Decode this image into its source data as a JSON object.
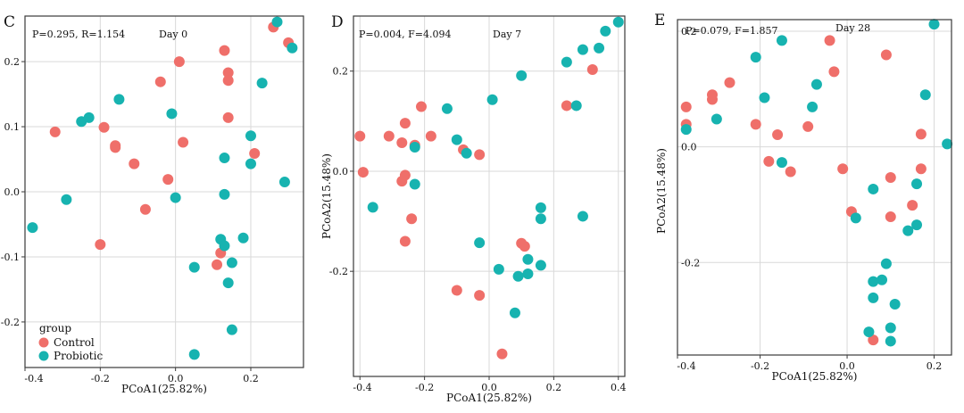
{
  "colors": {
    "control": "#EF6F6A",
    "probiotic": "#17B3B0",
    "grid": "#d9d9d9",
    "frame": "#3a3a3a"
  },
  "legend": {
    "title": "group",
    "items": [
      {
        "label": "Control",
        "color": "#EF6F6A"
      },
      {
        "label": "Probiotic",
        "color": "#17B3B0"
      }
    ]
  },
  "chart_data": [
    {
      "type": "scatter",
      "panel": "C",
      "stat_text": "P=0.295, R=1.154",
      "day_label": "Day 0",
      "xlabel": "PCoA1(25.82%)",
      "ylabel": "",
      "xlim": [
        -0.4,
        0.34
      ],
      "ylim": [
        -0.27,
        0.27
      ],
      "x_ticks": [
        -0.4,
        -0.2,
        0.0,
        0.2
      ],
      "x_tick_labels": [
        "-0.4",
        "-0.2",
        "0.0",
        "0.2"
      ],
      "y_ticks": [
        -0.2,
        -0.1,
        0.0,
        0.1,
        0.2
      ],
      "y_tick_labels": [
        "-0.2",
        "-0.1",
        "0.0",
        "0.1",
        "0.2"
      ],
      "grid": true,
      "legend_position": "bottom-left",
      "series": [
        {
          "name": "Control",
          "color": "#EF6F6A",
          "points": [
            [
              -0.32,
              0.092
            ],
            [
              -0.19,
              0.099
            ],
            [
              -0.16,
              0.071
            ],
            [
              -0.16,
              0.068
            ],
            [
              -0.11,
              0.043
            ],
            [
              -0.08,
              -0.027
            ],
            [
              -0.04,
              0.169
            ],
            [
              0.01,
              0.2
            ],
            [
              -0.02,
              0.019
            ],
            [
              0.02,
              0.076
            ],
            [
              0.13,
              0.217
            ],
            [
              0.14,
              0.183
            ],
            [
              0.14,
              0.171
            ],
            [
              0.14,
              0.114
            ],
            [
              0.21,
              0.059
            ],
            [
              0.26,
              0.253
            ],
            [
              0.3,
              0.229
            ],
            [
              0.12,
              -0.094
            ],
            [
              0.11,
              -0.112
            ],
            [
              -0.2,
              -0.081
            ]
          ]
        },
        {
          "name": "Probiotic",
          "color": "#17B3B0",
          "points": [
            [
              -0.38,
              -0.055
            ],
            [
              -0.29,
              -0.012
            ],
            [
              -0.25,
              0.108
            ],
            [
              -0.23,
              0.114
            ],
            [
              -0.15,
              0.142
            ],
            [
              -0.01,
              0.12
            ],
            [
              0.0,
              -0.009
            ],
            [
              0.13,
              0.052
            ],
            [
              0.13,
              -0.004
            ],
            [
              0.2,
              0.086
            ],
            [
              0.2,
              0.043
            ],
            [
              0.23,
              0.167
            ],
            [
              0.27,
              0.261
            ],
            [
              0.29,
              0.015
            ],
            [
              0.31,
              0.221
            ],
            [
              0.12,
              -0.073
            ],
            [
              0.13,
              -0.083
            ],
            [
              0.18,
              -0.071
            ],
            [
              0.15,
              -0.109
            ],
            [
              0.14,
              -0.14
            ],
            [
              0.05,
              -0.116
            ],
            [
              0.15,
              -0.212
            ],
            [
              0.05,
              -0.25
            ]
          ]
        }
      ]
    },
    {
      "type": "scatter",
      "panel": "D",
      "stat_text": "P=0.004, F=4.094",
      "day_label": "Day 7",
      "xlabel": "PCoA1(25.82%)",
      "ylabel": "PCoA2(15.48%)",
      "xlim": [
        -0.42,
        0.42
      ],
      "ylim": [
        -0.41,
        0.31
      ],
      "x_ticks": [
        -0.4,
        -0.2,
        0.0,
        0.2,
        0.4
      ],
      "x_tick_labels": [
        "-0.4",
        "-0.2",
        "0.0",
        "0.2",
        "0.4"
      ],
      "y_ticks": [
        -0.2,
        0.0,
        0.2
      ],
      "y_tick_labels": [
        "-0.2",
        "0.0",
        "0.2"
      ],
      "grid": true,
      "series": [
        {
          "name": "Control",
          "color": "#EF6F6A",
          "points": [
            [
              -0.4,
              0.07
            ],
            [
              -0.39,
              -0.002
            ],
            [
              -0.31,
              0.07
            ],
            [
              -0.27,
              0.057
            ],
            [
              -0.26,
              0.096
            ],
            [
              -0.27,
              -0.02
            ],
            [
              -0.26,
              -0.008
            ],
            [
              -0.23,
              0.052
            ],
            [
              -0.21,
              0.129
            ],
            [
              -0.18,
              0.07
            ],
            [
              -0.24,
              -0.095
            ],
            [
              -0.26,
              -0.14
            ],
            [
              -0.08,
              0.043
            ],
            [
              -0.03,
              0.033
            ],
            [
              -0.1,
              -0.238
            ],
            [
              -0.03,
              -0.248
            ],
            [
              0.1,
              -0.144
            ],
            [
              0.11,
              -0.15
            ],
            [
              0.24,
              0.131
            ],
            [
              0.32,
              0.203
            ],
            [
              0.04,
              -0.365
            ]
          ]
        },
        {
          "name": "Probiotic",
          "color": "#17B3B0",
          "points": [
            [
              -0.36,
              -0.072
            ],
            [
              -0.23,
              0.048
            ],
            [
              -0.23,
              -0.026
            ],
            [
              -0.13,
              0.125
            ],
            [
              -0.1,
              0.063
            ],
            [
              -0.07,
              0.036
            ],
            [
              0.01,
              0.143
            ],
            [
              0.1,
              0.191
            ],
            [
              0.24,
              0.218
            ],
            [
              0.27,
              0.131
            ],
            [
              0.29,
              0.243
            ],
            [
              0.34,
              0.246
            ],
            [
              0.36,
              0.28
            ],
            [
              0.4,
              0.298
            ],
            [
              -0.03,
              -0.143
            ],
            [
              0.03,
              -0.196
            ],
            [
              0.09,
              -0.21
            ],
            [
              0.12,
              -0.176
            ],
            [
              0.12,
              -0.205
            ],
            [
              0.16,
              -0.073
            ],
            [
              0.16,
              -0.095
            ],
            [
              0.16,
              -0.188
            ],
            [
              0.08,
              -0.283
            ],
            [
              0.29,
              -0.09
            ]
          ]
        }
      ]
    },
    {
      "type": "scatter",
      "panel": "E",
      "stat_text": "P=0.079, F=1.857",
      "day_label": "Day 28",
      "xlabel": "PCoA1(25.82%)",
      "ylabel": "PCoA2(15.48%)",
      "xlim": [
        -0.39,
        0.24
      ],
      "ylim": [
        -0.36,
        0.22
      ],
      "x_ticks": [
        -0.4,
        -0.2,
        0.0,
        0.2
      ],
      "x_tick_labels": [
        "-0.4",
        "-0.2",
        "0.0",
        "0.2"
      ],
      "y_ticks": [
        -0.2,
        0.0,
        0.2
      ],
      "y_tick_labels": [
        "-0.2",
        "0.0",
        "0.2"
      ],
      "grid": true,
      "series": [
        {
          "name": "Control",
          "color": "#EF6F6A",
          "points": [
            [
              -0.37,
              0.069
            ],
            [
              -0.37,
              0.039
            ],
            [
              -0.31,
              0.082
            ],
            [
              -0.31,
              0.09
            ],
            [
              -0.27,
              0.111
            ],
            [
              -0.21,
              0.039
            ],
            [
              -0.16,
              0.021
            ],
            [
              -0.18,
              -0.025
            ],
            [
              -0.13,
              -0.043
            ],
            [
              -0.09,
              0.035
            ],
            [
              -0.04,
              0.184
            ],
            [
              -0.03,
              0.13
            ],
            [
              -0.01,
              -0.038
            ],
            [
              0.01,
              -0.112
            ],
            [
              0.09,
              0.159
            ],
            [
              0.1,
              -0.053
            ],
            [
              0.1,
              -0.121
            ],
            [
              0.15,
              -0.101
            ],
            [
              0.17,
              0.022
            ],
            [
              0.17,
              -0.038
            ],
            [
              0.06,
              -0.334
            ]
          ]
        },
        {
          "name": "Probiotic",
          "color": "#17B3B0",
          "points": [
            [
              -0.37,
              0.03
            ],
            [
              -0.3,
              0.048
            ],
            [
              -0.21,
              0.155
            ],
            [
              -0.19,
              0.085
            ],
            [
              -0.15,
              0.184
            ],
            [
              -0.15,
              -0.027
            ],
            [
              -0.08,
              0.069
            ],
            [
              -0.07,
              0.108
            ],
            [
              0.2,
              0.212
            ],
            [
              0.23,
              0.005
            ],
            [
              0.18,
              0.09
            ],
            [
              0.16,
              -0.064
            ],
            [
              0.16,
              -0.135
            ],
            [
              0.14,
              -0.145
            ],
            [
              0.02,
              -0.123
            ],
            [
              0.06,
              -0.073
            ],
            [
              0.09,
              -0.202
            ],
            [
              0.08,
              -0.23
            ],
            [
              0.06,
              -0.233
            ],
            [
              0.06,
              -0.261
            ],
            [
              0.11,
              -0.272
            ],
            [
              0.05,
              -0.32
            ],
            [
              0.1,
              -0.313
            ],
            [
              0.1,
              -0.336
            ]
          ]
        }
      ]
    }
  ]
}
